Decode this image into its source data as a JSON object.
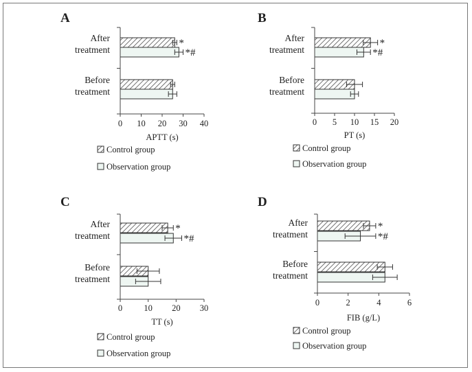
{
  "figure": {
    "colors": {
      "control_fill": "#ffffff",
      "control_hatch": "#5a5a5a",
      "observation_fill": "#eef6f2",
      "bar_stroke": "#333333",
      "axis": "#444444",
      "frame": "#777777"
    },
    "legend": {
      "control": "Control group",
      "observation": "Observation group"
    }
  },
  "chart_data": [
    {
      "panel": "A",
      "type": "bar",
      "orientation": "horizontal",
      "categories": [
        "After\ntreatment",
        "Before\ntreatment"
      ],
      "series": [
        {
          "name": "Control group",
          "values": [
            26,
            25
          ],
          "errors": [
            1,
            1
          ],
          "annotations": [
            "*",
            ""
          ]
        },
        {
          "name": "Observation group",
          "values": [
            28,
            25
          ],
          "errors": [
            2,
            2
          ],
          "annotations": [
            "*#",
            ""
          ]
        }
      ],
      "xlabel": "APTT (s)",
      "xlim": [
        0,
        40
      ],
      "xticks": [
        0,
        10,
        20,
        30,
        40
      ],
      "tick_labels": [
        "0",
        "10",
        "20",
        "30",
        "40"
      ],
      "legend": "bottom"
    },
    {
      "panel": "B",
      "type": "bar",
      "orientation": "horizontal",
      "categories": [
        "After\ntreatment",
        "Before\ntreatment"
      ],
      "series": [
        {
          "name": "Control group",
          "values": [
            14,
            10
          ],
          "errors": [
            1.8,
            2
          ],
          "annotations": [
            "*",
            ""
          ]
        },
        {
          "name": "Observation group",
          "values": [
            12.3,
            10
          ],
          "errors": [
            1.7,
            1
          ],
          "annotations": [
            "*#",
            ""
          ]
        }
      ],
      "xlabel": "PT (s)",
      "xlim": [
        0,
        20
      ],
      "xticks": [
        0,
        5,
        10,
        15,
        20
      ],
      "tick_labels": [
        "0",
        "5",
        "10",
        "15",
        "20"
      ],
      "legend": "bottom"
    },
    {
      "panel": "C",
      "type": "bar",
      "orientation": "horizontal",
      "categories": [
        "After\ntreatment",
        "Before\ntreatment"
      ],
      "series": [
        {
          "name": "Control group",
          "values": [
            17,
            10
          ],
          "errors": [
            2,
            4
          ],
          "annotations": [
            "*",
            ""
          ]
        },
        {
          "name": "Observation group",
          "values": [
            19,
            10
          ],
          "errors": [
            3,
            4.5
          ],
          "annotations": [
            "*#",
            ""
          ]
        }
      ],
      "xlabel": "TT (s)",
      "xlim": [
        0,
        30
      ],
      "xticks": [
        0,
        10,
        20,
        30
      ],
      "tick_labels": [
        "0",
        "10",
        "20",
        "30"
      ],
      "legend": "bottom"
    },
    {
      "panel": "D",
      "type": "bar",
      "orientation": "horizontal",
      "categories": [
        "After\ntreatment",
        "Before\ntreatment"
      ],
      "series": [
        {
          "name": "Control group",
          "values": [
            3.4,
            4.4
          ],
          "errors": [
            0.4,
            0.5
          ],
          "annotations": [
            "*",
            ""
          ]
        },
        {
          "name": "Observation group",
          "values": [
            2.8,
            4.4
          ],
          "errors": [
            1.0,
            0.8
          ],
          "annotations": [
            "*#",
            ""
          ]
        }
      ],
      "xlabel": "FIB (g/L)",
      "xlim": [
        0,
        6
      ],
      "xticks": [
        0,
        2,
        4,
        6
      ],
      "tick_labels": [
        "0",
        "2",
        "4",
        "6"
      ],
      "legend": "bottom"
    }
  ]
}
